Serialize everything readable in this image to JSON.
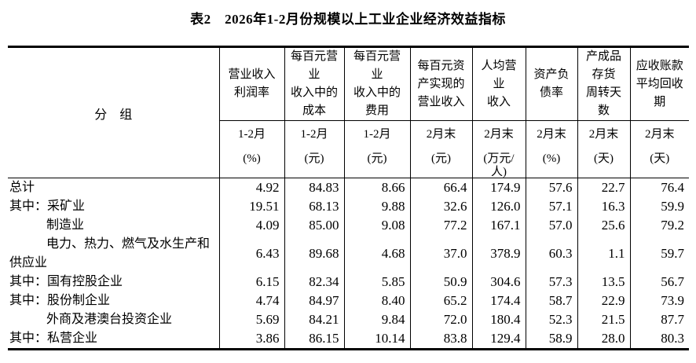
{
  "title": "表2　2026年1-2月份规模以上工业企业经济效益指标",
  "table": {
    "group_header": "分　组",
    "columns": [
      {
        "label": "营业收入\n利润率",
        "period": "1-2月",
        "unit": "(%)"
      },
      {
        "label": "每百元营\n业\n收入中的\n成本",
        "period": "1-2月",
        "unit": "(元)"
      },
      {
        "label": "每百元营\n业\n收入中的\n费用",
        "period": "1-2月",
        "unit": "(元)"
      },
      {
        "label": "每百元资\n产实现的\n营业收入",
        "period": "2月末",
        "unit": "(元)"
      },
      {
        "label": "人均营\n业\n收入",
        "period": "2月末",
        "unit": "(万元/\n人)"
      },
      {
        "label": "资产负\n债率",
        "period": "2月末",
        "unit": "(%)"
      },
      {
        "label": "产成品\n存货\n周转天\n数",
        "period": "2月末",
        "unit": "(天)"
      },
      {
        "label": "应收账款\n平均回收\n期",
        "period": "2月末",
        "unit": "(天)"
      }
    ],
    "rows": [
      {
        "label": "总计",
        "indent": false,
        "tall": false,
        "values": [
          "4.92",
          "84.83",
          "8.66",
          "66.4",
          "174.9",
          "57.6",
          "22.7",
          "76.4"
        ]
      },
      {
        "label": "其中：采矿业",
        "indent": false,
        "tall": false,
        "values": [
          "19.51",
          "68.13",
          "9.88",
          "32.6",
          "126.0",
          "57.1",
          "16.3",
          "59.9"
        ]
      },
      {
        "label": "制造业",
        "indent": true,
        "tall": false,
        "values": [
          "4.09",
          "85.00",
          "9.08",
          "77.2",
          "167.1",
          "57.0",
          "25.6",
          "79.2"
        ]
      },
      {
        "label": "电力、热力、燃气及水生产和\n供应业",
        "indent": true,
        "tall": true,
        "values": [
          "6.43",
          "89.68",
          "4.68",
          "37.0",
          "378.9",
          "60.3",
          "1.1",
          "59.7"
        ]
      },
      {
        "label": "其中：国有控股企业",
        "indent": false,
        "tall": false,
        "values": [
          "6.15",
          "82.34",
          "5.85",
          "50.9",
          "304.6",
          "57.3",
          "13.5",
          "56.7"
        ]
      },
      {
        "label": "其中：股份制企业",
        "indent": false,
        "tall": false,
        "values": [
          "4.74",
          "84.97",
          "8.40",
          "65.2",
          "174.4",
          "58.7",
          "22.9",
          "73.9"
        ]
      },
      {
        "label": "外商及港澳台投资企业",
        "indent": true,
        "tall": false,
        "values": [
          "5.69",
          "84.21",
          "9.84",
          "72.0",
          "180.4",
          "52.3",
          "21.5",
          "87.7"
        ]
      },
      {
        "label": "其中：私营企业",
        "indent": false,
        "tall": false,
        "values": [
          "3.86",
          "86.15",
          "10.14",
          "83.8",
          "129.4",
          "58.9",
          "28.0",
          "80.3"
        ]
      }
    ]
  }
}
